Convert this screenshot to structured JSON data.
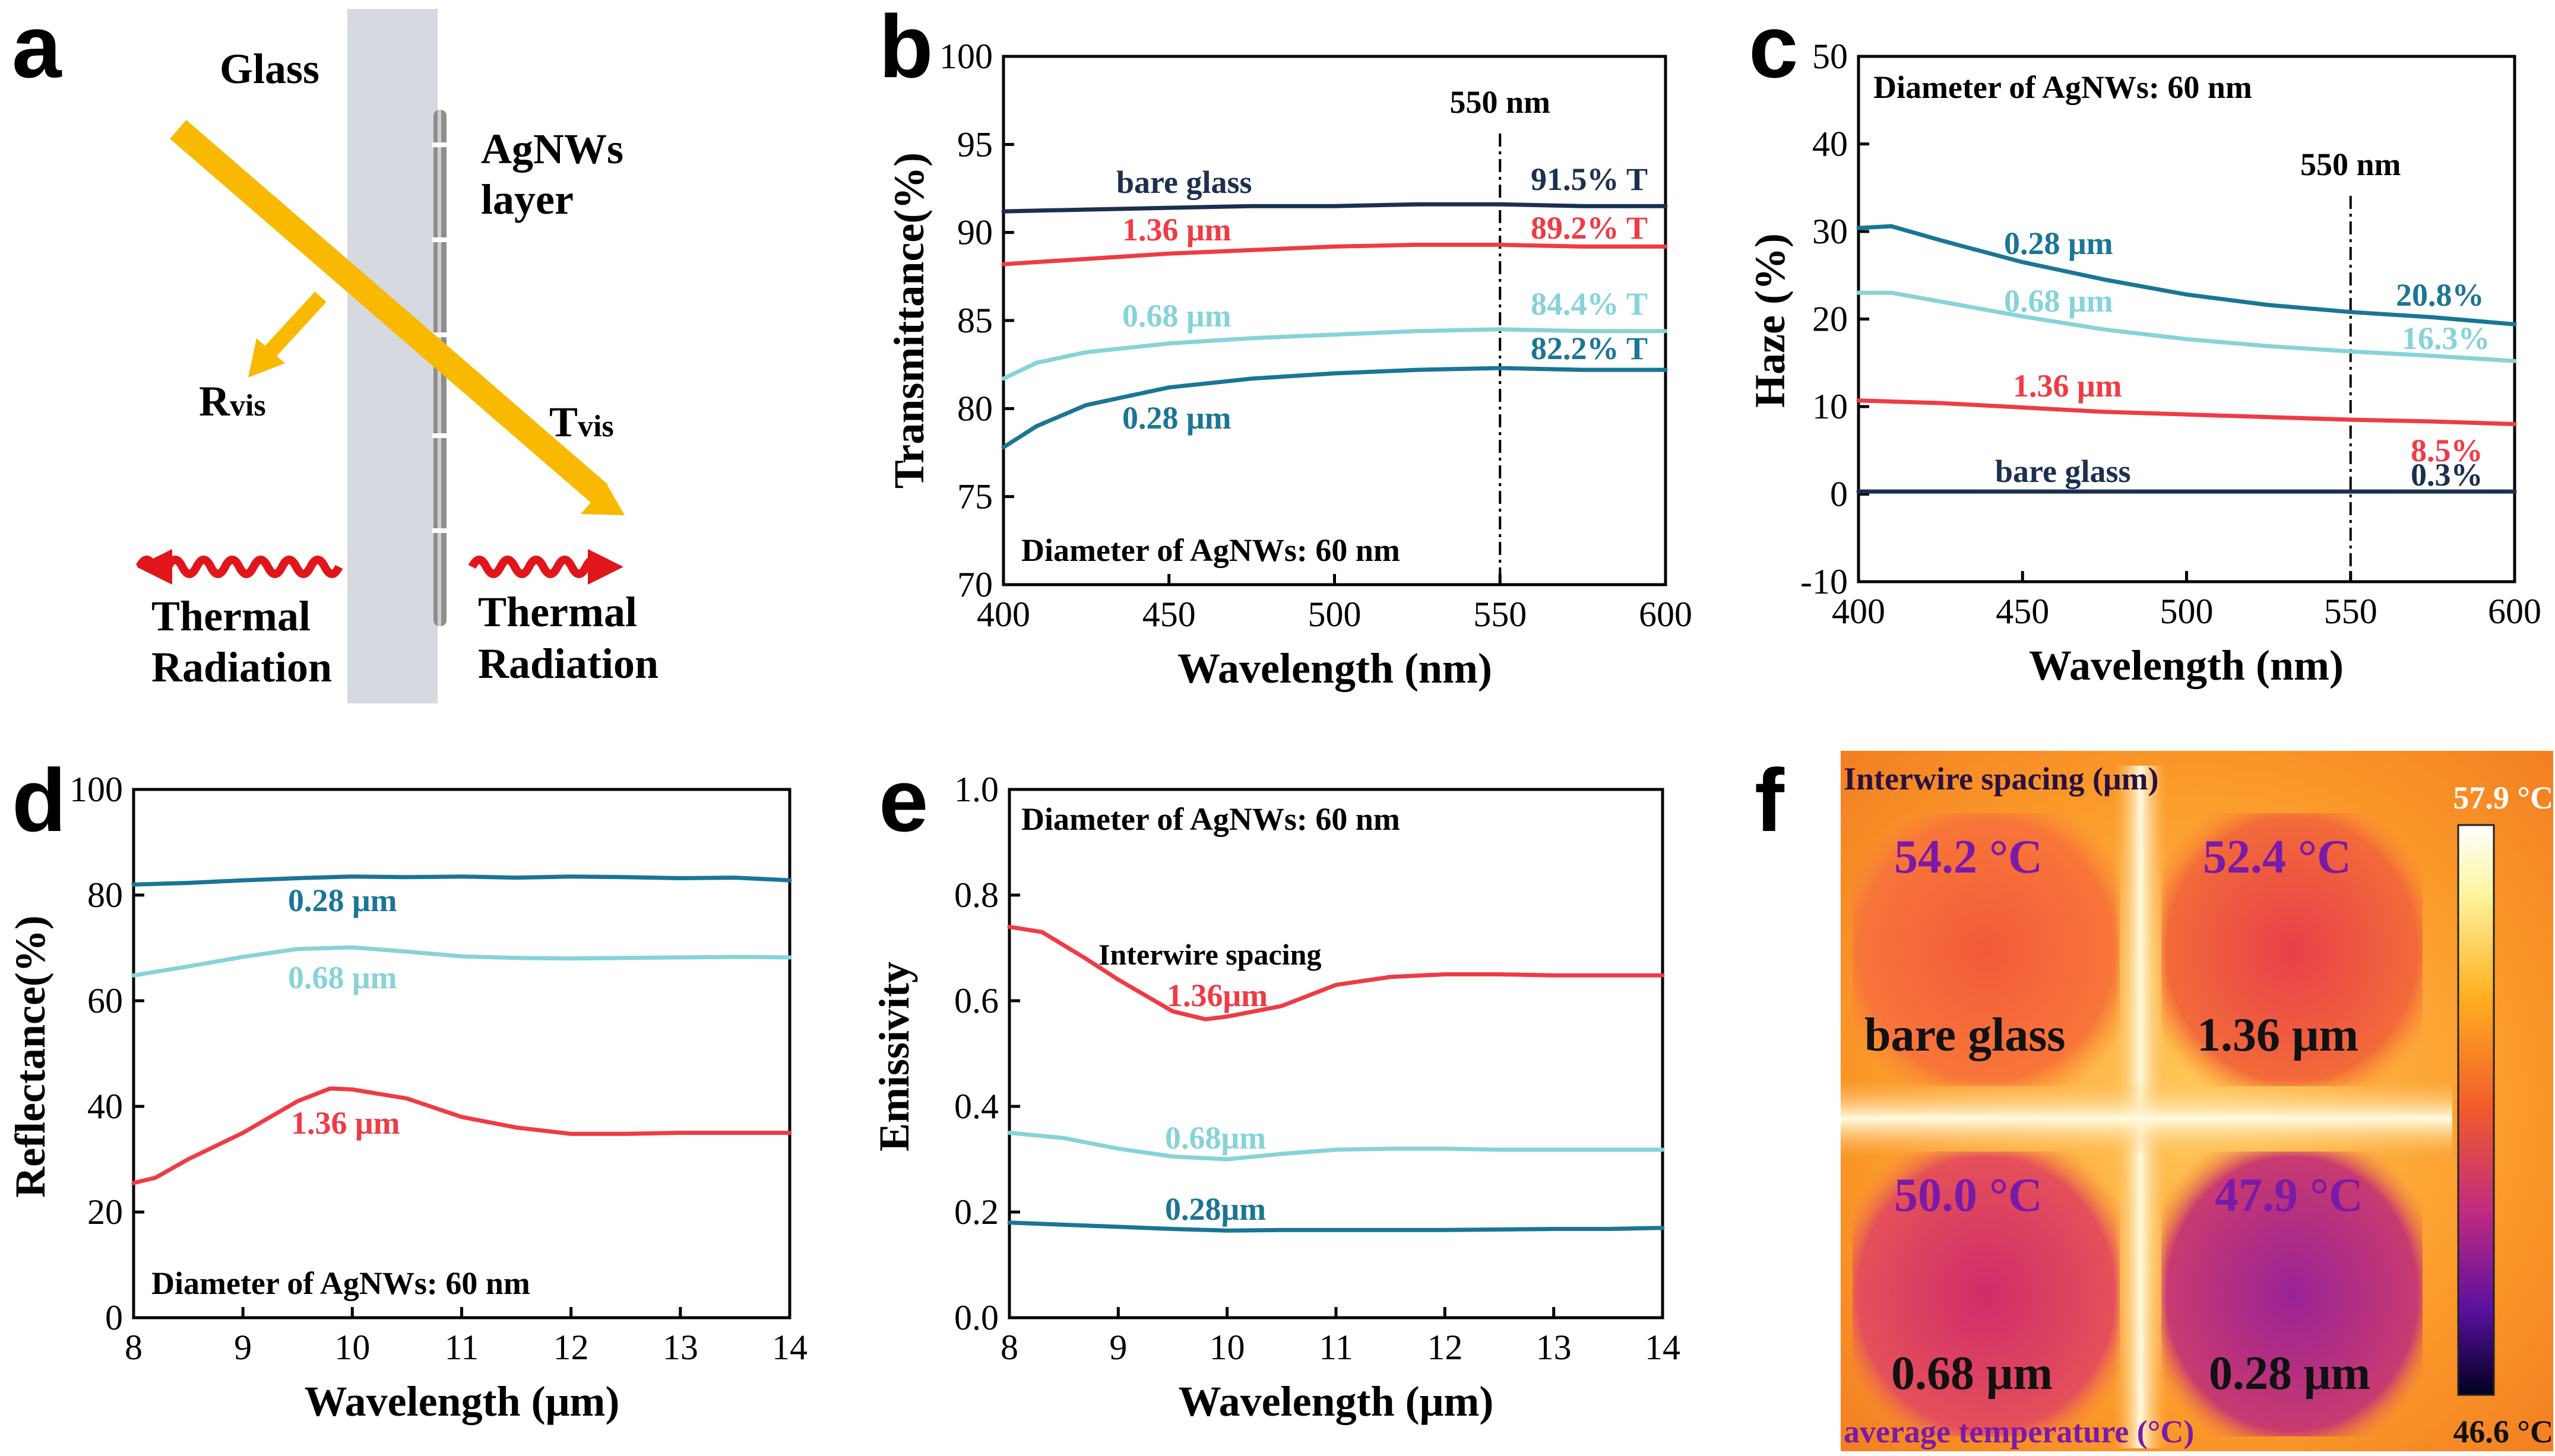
{
  "colors": {
    "bare_glass": "#1b3050",
    "red": "#ef3b45",
    "light_cyan": "#86d3d8",
    "teal": "#1b7596",
    "arrow": "#f8b900",
    "glass": "#d6d9e0",
    "wire": "#8a8a8a",
    "thermal": "#e0161b"
  },
  "panel_a": {
    "letter": "a",
    "glass_label": "Glass",
    "agnw_label_line1": "AgNWs",
    "agnw_label_line2": "layer",
    "r_label_main": "R",
    "r_label_sub": "vis",
    "t_label_main": "T",
    "t_label_sub": "vis",
    "thermal_left_line1": "Thermal",
    "thermal_left_line2": "Radiation",
    "thermal_right_line1": "Thermal",
    "thermal_right_line2": "Radiation"
  },
  "chart_data": [
    {
      "panel": "b",
      "type": "line",
      "xlabel": "Wavelength (nm)",
      "ylabel": "Transmittance(%)",
      "xlim": [
        400,
        600
      ],
      "ylim": [
        70,
        100
      ],
      "xticks": [
        400,
        450,
        500,
        550,
        600
      ],
      "yticks": [
        70,
        75,
        80,
        85,
        90,
        95,
        100
      ],
      "annotation": "Diameter of AgNWs: 60 nm",
      "ref_line": {
        "x": 550,
        "label": "550 nm"
      },
      "series": [
        {
          "name": "bare glass",
          "color_key": "bare_glass",
          "end_label": "91.5% T",
          "x": [
            400,
            425,
            450,
            475,
            500,
            525,
            550,
            575,
            600
          ],
          "y": [
            91.2,
            91.3,
            91.4,
            91.5,
            91.5,
            91.6,
            91.6,
            91.5,
            91.5
          ]
        },
        {
          "name": "1.36 μm",
          "color_key": "red",
          "end_label": "89.2% T",
          "x": [
            400,
            425,
            450,
            475,
            500,
            525,
            550,
            575,
            600
          ],
          "y": [
            88.2,
            88.5,
            88.8,
            89.0,
            89.2,
            89.3,
            89.3,
            89.2,
            89.2
          ]
        },
        {
          "name": "0.68 μm",
          "color_key": "light_cyan",
          "end_label": "84.4% T",
          "x": [
            400,
            410,
            425,
            450,
            475,
            500,
            525,
            550,
            575,
            600
          ],
          "y": [
            81.7,
            82.6,
            83.2,
            83.7,
            84.0,
            84.2,
            84.4,
            84.5,
            84.4,
            84.4
          ]
        },
        {
          "name": "0.28 μm",
          "color_key": "teal",
          "end_label": "82.2% T",
          "x": [
            400,
            410,
            425,
            450,
            475,
            500,
            525,
            550,
            575,
            600
          ],
          "y": [
            77.8,
            79.0,
            80.2,
            81.2,
            81.7,
            82.0,
            82.2,
            82.3,
            82.2,
            82.2
          ]
        }
      ]
    },
    {
      "panel": "c",
      "type": "line",
      "xlabel": "Wavelength (nm)",
      "ylabel": "Haze (%)",
      "xlim": [
        400,
        600
      ],
      "ylim": [
        -10,
        50
      ],
      "xticks": [
        400,
        450,
        500,
        550,
        600
      ],
      "yticks": [
        -10,
        0,
        10,
        20,
        30,
        40,
        50
      ],
      "annotation": "Diameter of AgNWs: 60 nm",
      "ref_line": {
        "x": 550,
        "label": "550 nm"
      },
      "series": [
        {
          "name": "0.28 μm",
          "color_key": "teal",
          "end_label": "20.8%",
          "x": [
            400,
            410,
            425,
            450,
            475,
            500,
            525,
            550,
            575,
            600
          ],
          "y": [
            30.4,
            30.6,
            29.0,
            26.5,
            24.5,
            22.8,
            21.6,
            20.8,
            20.2,
            19.4
          ]
        },
        {
          "name": "0.68 μm",
          "color_key": "light_cyan",
          "end_label": "16.3%",
          "x": [
            400,
            410,
            425,
            450,
            475,
            500,
            525,
            550,
            575,
            600
          ],
          "y": [
            23.0,
            23.0,
            22.0,
            20.3,
            18.8,
            17.7,
            16.9,
            16.3,
            15.8,
            15.2
          ]
        },
        {
          "name": "1.36 μm",
          "color_key": "red",
          "end_label": "8.5%",
          "x": [
            400,
            425,
            450,
            475,
            500,
            525,
            550,
            575,
            600
          ],
          "y": [
            10.7,
            10.4,
            9.9,
            9.4,
            9.1,
            8.8,
            8.5,
            8.3,
            8.0
          ]
        },
        {
          "name": "bare glass",
          "color_key": "bare_glass",
          "end_label": "0.3%",
          "x": [
            400,
            450,
            500,
            550,
            600
          ],
          "y": [
            0.3,
            0.3,
            0.3,
            0.3,
            0.3
          ]
        }
      ]
    },
    {
      "panel": "d",
      "type": "line",
      "xlabel": "Wavelength (μm)",
      "ylabel": "Reflectance(%)",
      "xlim": [
        8,
        14
      ],
      "ylim": [
        0,
        100
      ],
      "xticks": [
        8,
        9,
        10,
        11,
        12,
        13,
        14
      ],
      "yticks": [
        0,
        20,
        40,
        60,
        80,
        100
      ],
      "annotation": "Diameter of AgNWs: 60 nm",
      "series": [
        {
          "name": "0.28 μm",
          "color_key": "teal",
          "x": [
            8,
            8.5,
            9,
            9.5,
            10,
            10.5,
            11,
            11.5,
            12,
            12.5,
            13,
            13.5,
            14
          ],
          "y": [
            82.0,
            82.3,
            82.8,
            83.2,
            83.5,
            83.4,
            83.5,
            83.3,
            83.5,
            83.4,
            83.2,
            83.3,
            82.8
          ]
        },
        {
          "name": "0.68 μm",
          "color_key": "light_cyan",
          "x": [
            8,
            8.5,
            9,
            9.5,
            10,
            10.5,
            11,
            11.5,
            12,
            12.5,
            13,
            13.5,
            14
          ],
          "y": [
            64.8,
            66.5,
            68.3,
            69.8,
            70.1,
            69.3,
            68.4,
            68.1,
            68.0,
            68.1,
            68.2,
            68.3,
            68.2
          ]
        },
        {
          "name": "1.36 μm",
          "color_key": "red",
          "x": [
            8,
            8.2,
            8.5,
            9,
            9.5,
            9.8,
            10,
            10.5,
            11,
            11.5,
            12,
            12.5,
            13,
            13.5,
            14
          ],
          "y": [
            25.5,
            26.5,
            30.0,
            35.0,
            41.0,
            43.4,
            43.2,
            41.5,
            38.0,
            36.0,
            34.8,
            34.8,
            35.0,
            35.0,
            35.0
          ]
        }
      ]
    },
    {
      "panel": "e",
      "type": "line",
      "xlabel": "Wavelength (μm)",
      "ylabel": "Emissivity",
      "xlim": [
        8,
        14
      ],
      "ylim": [
        0,
        1.0
      ],
      "xticks": [
        8,
        9,
        10,
        11,
        12,
        13,
        14
      ],
      "yticks": [
        0.0,
        0.2,
        0.4,
        0.6,
        0.8,
        1.0
      ],
      "annotation": "Diameter of AgNWs: 60 nm",
      "sub_annotation": "Interwire spacing",
      "series": [
        {
          "name": "1.36μm",
          "color_key": "red",
          "x": [
            8,
            8.3,
            8.7,
            9,
            9.5,
            9.8,
            10,
            10.5,
            11,
            11.5,
            12,
            12.5,
            13,
            13.5,
            14
          ],
          "y": [
            0.74,
            0.73,
            0.68,
            0.64,
            0.58,
            0.565,
            0.57,
            0.59,
            0.63,
            0.645,
            0.65,
            0.65,
            0.648,
            0.648,
            0.648
          ]
        },
        {
          "name": "0.68μm",
          "color_key": "light_cyan",
          "x": [
            8,
            8.5,
            9,
            9.5,
            10,
            10.5,
            11,
            11.5,
            12,
            12.5,
            13,
            13.5,
            14
          ],
          "y": [
            0.35,
            0.34,
            0.32,
            0.305,
            0.3,
            0.31,
            0.318,
            0.32,
            0.32,
            0.318,
            0.318,
            0.318,
            0.318
          ]
        },
        {
          "name": "0.28μm",
          "color_key": "teal",
          "x": [
            8,
            8.5,
            9,
            9.5,
            10,
            10.5,
            11,
            11.5,
            12,
            12.5,
            13,
            13.5,
            14
          ],
          "y": [
            0.18,
            0.176,
            0.172,
            0.168,
            0.165,
            0.166,
            0.166,
            0.166,
            0.166,
            0.167,
            0.168,
            0.168,
            0.17
          ]
        }
      ]
    },
    {
      "panel": "f",
      "type": "heatmap",
      "title": "Interwire spacing (μm)",
      "footer": "average temperature (°C)",
      "colorbar_max": "57.9 °C",
      "colorbar_min": "46.6 °C",
      "cells": [
        {
          "name": "bare glass",
          "temp": "54.2 °C"
        },
        {
          "name": "1.36 μm",
          "temp": "52.4 °C"
        },
        {
          "name": "0.68 μm",
          "temp": "50.0 °C"
        },
        {
          "name": "0.28 μm",
          "temp": "47.9 °C"
        }
      ]
    }
  ]
}
